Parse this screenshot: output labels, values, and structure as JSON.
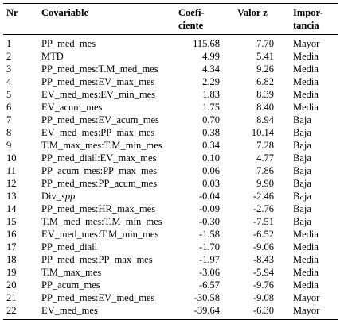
{
  "headers": {
    "nr": "Nr",
    "covariable": "Covariable",
    "coef_line1": "Coefi-",
    "coef_line2": "ciente",
    "valor_z": "Valor z",
    "imp_line1": "Impor-",
    "imp_line2": "tancia"
  },
  "rows": [
    {
      "nr": "1",
      "cov": "PP_med_mes",
      "coef": "115.68",
      "z": "7.70",
      "imp": "Mayor"
    },
    {
      "nr": "2",
      "cov": "MTD",
      "coef": "4.99",
      "z": "5.41",
      "imp": "Media"
    },
    {
      "nr": "3",
      "cov": "PP_med_mes:T.M_med_mes",
      "coef": "4.34",
      "z": "9.26",
      "imp": "Media"
    },
    {
      "nr": "4",
      "cov": "PP_med_mes:EV_max_mes",
      "coef": "2.29",
      "z": "6.82",
      "imp": "Media"
    },
    {
      "nr": "5",
      "cov": "EV_med_mes:EV_min_mes",
      "coef": "1.83",
      "z": "8.39",
      "imp": "Media"
    },
    {
      "nr": "6",
      "cov": "EV_acum_mes",
      "coef": "1.75",
      "z": "8.40",
      "imp": "Media"
    },
    {
      "nr": "7",
      "cov": "PP_med_mes:EV_acum_mes",
      "coef": "0.70",
      "z": "8.94",
      "imp": "Baja"
    },
    {
      "nr": "8",
      "cov": "EV_med_mes:PP_max_mes",
      "coef": "0.38",
      "z": "10.14",
      "imp": "Baja"
    },
    {
      "nr": "9",
      "cov": "T.M_max_mes:T.M_min_mes",
      "coef": "0.34",
      "z": "7.28",
      "imp": "Baja"
    },
    {
      "nr": "10",
      "cov": "PP_med_diall:EV_max_mes",
      "coef": "0.10",
      "z": "4.77",
      "imp": "Baja"
    },
    {
      "nr": "11",
      "cov": "PP_acum_mes:PP_max_mes",
      "coef": "0.06",
      "z": "7.86",
      "imp": "Baja"
    },
    {
      "nr": "12",
      "cov": "PP_med_mes:PP_acum_mes",
      "coef": "0.03",
      "z": "9.90",
      "imp": "Baja"
    },
    {
      "nr": "13",
      "cov": "Div_",
      "cov_italic": "spp",
      "coef": "-0.04",
      "z": "-2.46",
      "imp": "Baja"
    },
    {
      "nr": "14",
      "cov": "PP_med_mes:HR_max_mes",
      "coef": "-0.09",
      "z": "-2.76",
      "imp": "Baja"
    },
    {
      "nr": "15",
      "cov": "T.M_med_mes:T.M_min_mes",
      "coef": "-0.30",
      "z": "-7.51",
      "imp": "Baja"
    },
    {
      "nr": "16",
      "cov": "EV_med_mes:T.M_min_mes",
      "coef": "-1.58",
      "z": "-6.52",
      "imp": "Media"
    },
    {
      "nr": "17",
      "cov": "PP_med_diall",
      "coef": "-1.70",
      "z": "-9.06",
      "imp": "Media"
    },
    {
      "nr": "18",
      "cov": "PP_med_mes:PP_max_mes",
      "coef": "-1.97",
      "z": "-8.43",
      "imp": "Media"
    },
    {
      "nr": "19",
      "cov": "T.M_max_mes",
      "coef": "-3.06",
      "z": "-5.94",
      "imp": "Media"
    },
    {
      "nr": "20",
      "cov": "PP_acum_mes",
      "coef": "-6.57",
      "z": "-9.76",
      "imp": "Media"
    },
    {
      "nr": "21",
      "cov": "PP_med_mes:EV_med_mes",
      "coef": "-30.58",
      "z": "-9.08",
      "imp": "Mayor"
    },
    {
      "nr": "22",
      "cov": "EV_med_mes",
      "coef": "-39.64",
      "z": "-6.30",
      "imp": "Mayor"
    }
  ]
}
